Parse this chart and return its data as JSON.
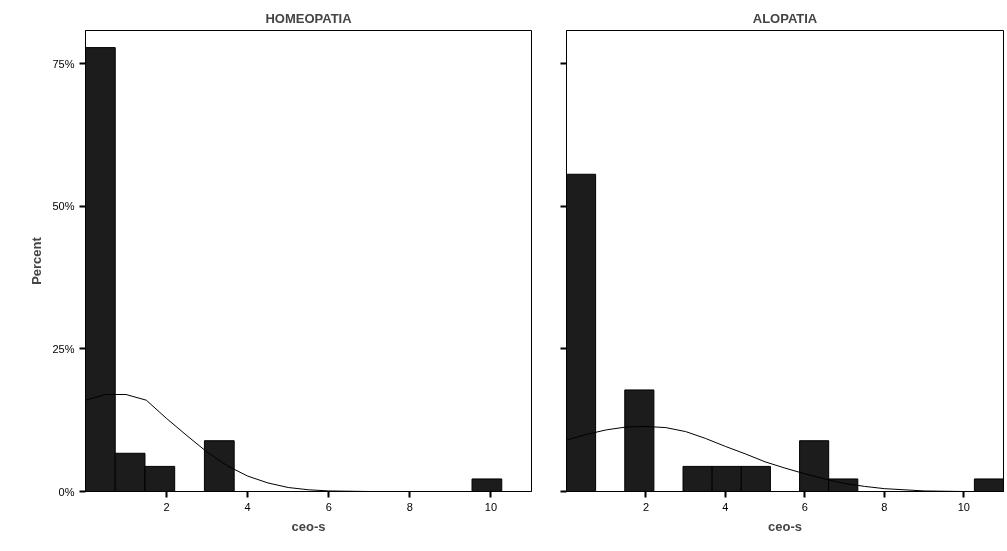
{
  "chart_data": [
    {
      "type": "histogram",
      "title": "HOMEOPATIA",
      "xlabel": "ceo-s",
      "ylabel": "Percent",
      "color": "#1c1c1c",
      "bins": [
        0,
        0.733,
        1.467,
        2.2,
        2.933,
        3.667,
        4.4,
        5.133,
        5.867,
        6.6,
        7.333,
        8.067,
        8.8,
        9.533,
        10.267,
        11
      ],
      "values": [
        77.8,
        6.7,
        4.4,
        0,
        8.9,
        0,
        0,
        0,
        0,
        0,
        0,
        0,
        0,
        2.2,
        0
      ],
      "series": [
        {
          "type": "line",
          "color": "#000000",
          "x": [
            0,
            0.5,
            1,
            1.5,
            2,
            2.5,
            3,
            3.5,
            4,
            4.5,
            5,
            5.5,
            6,
            7,
            7.6
          ],
          "values": [
            16.0,
            17.0,
            17.0,
            16.0,
            12.8,
            9.8,
            6.9,
            4.5,
            2.7,
            1.5,
            0.7,
            0.3,
            0.1,
            0,
            0
          ]
        }
      ],
      "xlim": [
        0,
        11
      ],
      "ylim": [
        0,
        80.8
      ],
      "xticks": [
        2,
        4,
        6,
        8,
        10
      ],
      "yticks": [
        {
          "value": 0,
          "label": "0%"
        },
        {
          "value": 25,
          "label": "25%"
        },
        {
          "value": 50,
          "label": "50%"
        },
        {
          "value": 75,
          "label": "75%"
        }
      ],
      "grid": false
    },
    {
      "type": "histogram",
      "title": "ALOPATIA",
      "xlabel": "ceo-s",
      "color": "#1c1c1c",
      "bins": [
        0,
        0.733,
        1.467,
        2.2,
        2.933,
        3.667,
        4.4,
        5.133,
        5.867,
        6.6,
        7.333,
        8.067,
        8.8,
        9.533,
        10.267,
        11
      ],
      "values": [
        55.6,
        0,
        17.8,
        0,
        4.4,
        4.4,
        4.4,
        0,
        8.9,
        2.2,
        0,
        0,
        0,
        0,
        2.2
      ],
      "series": [
        {
          "type": "line",
          "color": "#000000",
          "x": [
            0,
            0.5,
            1,
            1.5,
            2,
            2.5,
            3,
            3.5,
            4,
            4.5,
            5,
            5.5,
            6,
            6.5,
            7,
            7.5,
            8,
            9,
            10,
            11
          ],
          "values": [
            9.0,
            10.0,
            10.8,
            11.3,
            11.4,
            11.2,
            10.5,
            9.3,
            7.9,
            6.6,
            5.2,
            4.1,
            3.1,
            2.2,
            1.4,
            0.9,
            0.5,
            0.1,
            0,
            0
          ]
        }
      ],
      "xlim": [
        0,
        11
      ],
      "ylim": [
        0,
        80.8
      ],
      "xticks": [
        2,
        4,
        6,
        8,
        10
      ],
      "yticks": [
        0,
        25,
        50,
        75
      ],
      "tick_labels": "x",
      "grid": false
    }
  ]
}
